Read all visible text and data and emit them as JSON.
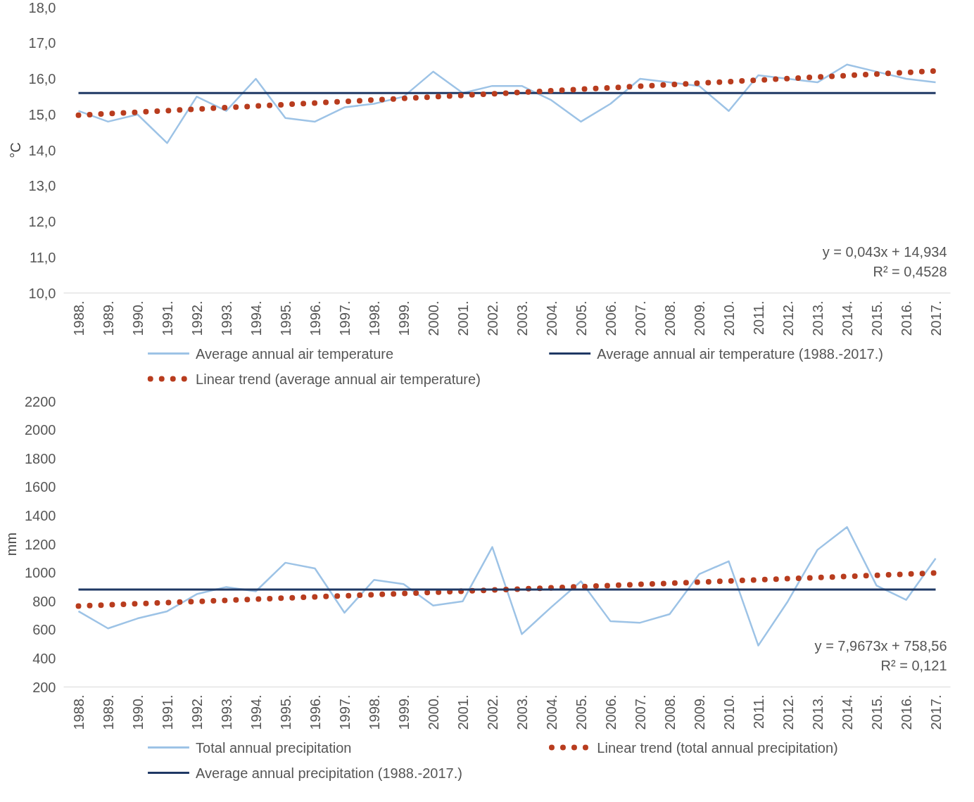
{
  "chart_data": [
    {
      "type": "line",
      "ylabel": "°C",
      "categories": [
        "1988.",
        "1989.",
        "1990.",
        "1991.",
        "1992.",
        "1993.",
        "1994.",
        "1995.",
        "1996.",
        "1997.",
        "1998.",
        "1999.",
        "2000.",
        "2001.",
        "2002.",
        "2003.",
        "2004.",
        "2005.",
        "2006.",
        "2007.",
        "2008.",
        "2009.",
        "2010.",
        "2011.",
        "2012.",
        "2013.",
        "2014.",
        "2015.",
        "2016.",
        "2017."
      ],
      "series": [
        {
          "name": "Average annual air temperature",
          "color": "#9dc3e6",
          "values": [
            15.1,
            14.8,
            15.0,
            14.2,
            15.5,
            15.1,
            16.0,
            14.9,
            14.8,
            15.2,
            15.3,
            15.5,
            16.2,
            15.6,
            15.8,
            15.8,
            15.4,
            14.8,
            15.3,
            16.0,
            15.9,
            15.8,
            15.1,
            16.1,
            16.0,
            15.9,
            16.4,
            16.2,
            16.0,
            15.9
          ]
        },
        {
          "name": "Average annual air temperature (1988.-2017.)",
          "color": "#1f3864",
          "x": [
            "1988.",
            "2017."
          ],
          "values": [
            15.6,
            15.6
          ]
        },
        {
          "name": "Linear trend (average annual air temperature)",
          "color": "#b83c1e",
          "line_style": "dotted",
          "x": [
            "1988.",
            "2017."
          ],
          "values": [
            14.98,
            16.22
          ]
        }
      ],
      "ylim": [
        10,
        18
      ],
      "yticks": [
        {
          "value": 10,
          "label": "10,0"
        },
        {
          "value": 11,
          "label": "11,0"
        },
        {
          "value": 12,
          "label": "12,0"
        },
        {
          "value": 13,
          "label": "13,0"
        },
        {
          "value": 14,
          "label": "14,0"
        },
        {
          "value": 15,
          "label": "15,0"
        },
        {
          "value": 16,
          "label": "16,0"
        },
        {
          "value": 17,
          "label": "17,0"
        },
        {
          "value": 18,
          "label": "18,0"
        }
      ],
      "annotations": [
        "y = 0,043x + 14,934",
        "R² = 0,4528"
      ],
      "grid": false,
      "legend": "bottom"
    },
    {
      "type": "line",
      "ylabel": "mm",
      "categories": [
        "1988.",
        "1989.",
        "1990.",
        "1991.",
        "1992.",
        "1993.",
        "1994.",
        "1995.",
        "1996.",
        "1997.",
        "1998.",
        "1999.",
        "2000.",
        "2001.",
        "2002.",
        "2003.",
        "2004.",
        "2005.",
        "2006.",
        "2007.",
        "2008.",
        "2009.",
        "2010.",
        "2011.",
        "2012.",
        "2013.",
        "2014.",
        "2015.",
        "2016.",
        "2017."
      ],
      "series": [
        {
          "name": "Total annual precipitation",
          "color": "#9dc3e6",
          "values": [
            730,
            610,
            680,
            730,
            850,
            900,
            870,
            1070,
            1030,
            720,
            950,
            920,
            770,
            800,
            1180,
            570,
            760,
            940,
            660,
            650,
            710,
            990,
            1080,
            490,
            800,
            1160,
            1320,
            910,
            810,
            1100
          ]
        },
        {
          "name": "Linear trend (total annual precipitation)",
          "color": "#b83c1e",
          "line_style": "dotted",
          "x": [
            "1988.",
            "2017."
          ],
          "values": [
            767,
            998
          ]
        },
        {
          "name": "Average annual precipitation (1988.-2017.)",
          "color": "#1f3864",
          "x": [
            "1988.",
            "2017."
          ],
          "values": [
            882,
            882
          ]
        }
      ],
      "ylim": [
        200,
        2200
      ],
      "yticks": [
        200,
        400,
        600,
        800,
        1000,
        1200,
        1400,
        1600,
        1800,
        2000,
        2200
      ],
      "annotations": [
        "y = 7,9673x + 758,56",
        "R² = 0,121"
      ],
      "grid": false,
      "legend": "bottom"
    }
  ]
}
